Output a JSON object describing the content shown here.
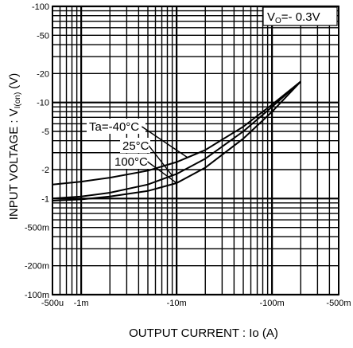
{
  "chart_data": {
    "type": "line",
    "xscale": "log",
    "yscale": "log",
    "grid": true,
    "xlabel": "OUTPUT  CURRENT : Io (A)",
    "ylabel": "INPUT  VOLTAGE : V",
    "ylabel_sub": "I(on)",
    "ylabel_unit": "(V)",
    "xlim": [
      0.0005,
      0.5
    ],
    "ylim": [
      0.1,
      100
    ],
    "x_ticks": [
      {
        "value": 0.0005,
        "label": "-500u"
      },
      {
        "value": 0.001,
        "label": "-1m"
      },
      {
        "value": 0.01,
        "label": "-10m"
      },
      {
        "value": 0.1,
        "label": "-100m"
      },
      {
        "value": 0.5,
        "label": "-500m"
      }
    ],
    "y_ticks": [
      {
        "value": 100,
        "label": "-100"
      },
      {
        "value": 50,
        "label": "-50"
      },
      {
        "value": 20,
        "label": "-20"
      },
      {
        "value": 10,
        "label": "-10"
      },
      {
        "value": 5,
        "label": "-5"
      },
      {
        "value": 2,
        "label": "-2"
      },
      {
        "value": 1,
        "label": "-1"
      },
      {
        "value": 0.5,
        "label": "-500m"
      },
      {
        "value": 0.2,
        "label": "-200m"
      },
      {
        "value": 0.1,
        "label": "-100m"
      }
    ],
    "condition": {
      "prefix": "V",
      "sub": "O",
      "value": "=- 0.3V"
    },
    "series": [
      {
        "name": "Ta=-40°C",
        "x": [
          0.0005,
          0.001,
          0.002,
          0.005,
          0.01,
          0.02,
          0.05,
          0.1,
          0.2
        ],
        "y": [
          1.4,
          1.5,
          1.65,
          1.95,
          2.4,
          3.2,
          5.6,
          9.5,
          16.5
        ]
      },
      {
        "name": "25°C",
        "x": [
          0.0005,
          0.001,
          0.002,
          0.005,
          0.01,
          0.02,
          0.05,
          0.1,
          0.2
        ],
        "y": [
          1.0,
          1.05,
          1.15,
          1.4,
          1.8,
          2.6,
          5.0,
          9.0,
          16.5
        ]
      },
      {
        "name": "100°C",
        "x": [
          0.0005,
          0.001,
          0.002,
          0.005,
          0.01,
          0.02,
          0.05,
          0.1,
          0.2
        ],
        "y": [
          0.95,
          0.98,
          1.05,
          1.2,
          1.45,
          2.1,
          4.2,
          8.0,
          16.5
        ]
      }
    ],
    "annotations": [
      {
        "text": "Ta=-40°C",
        "series": 0
      },
      {
        "text": "25°C",
        "series": 1
      },
      {
        "text": "100°C",
        "series": 2
      }
    ]
  }
}
